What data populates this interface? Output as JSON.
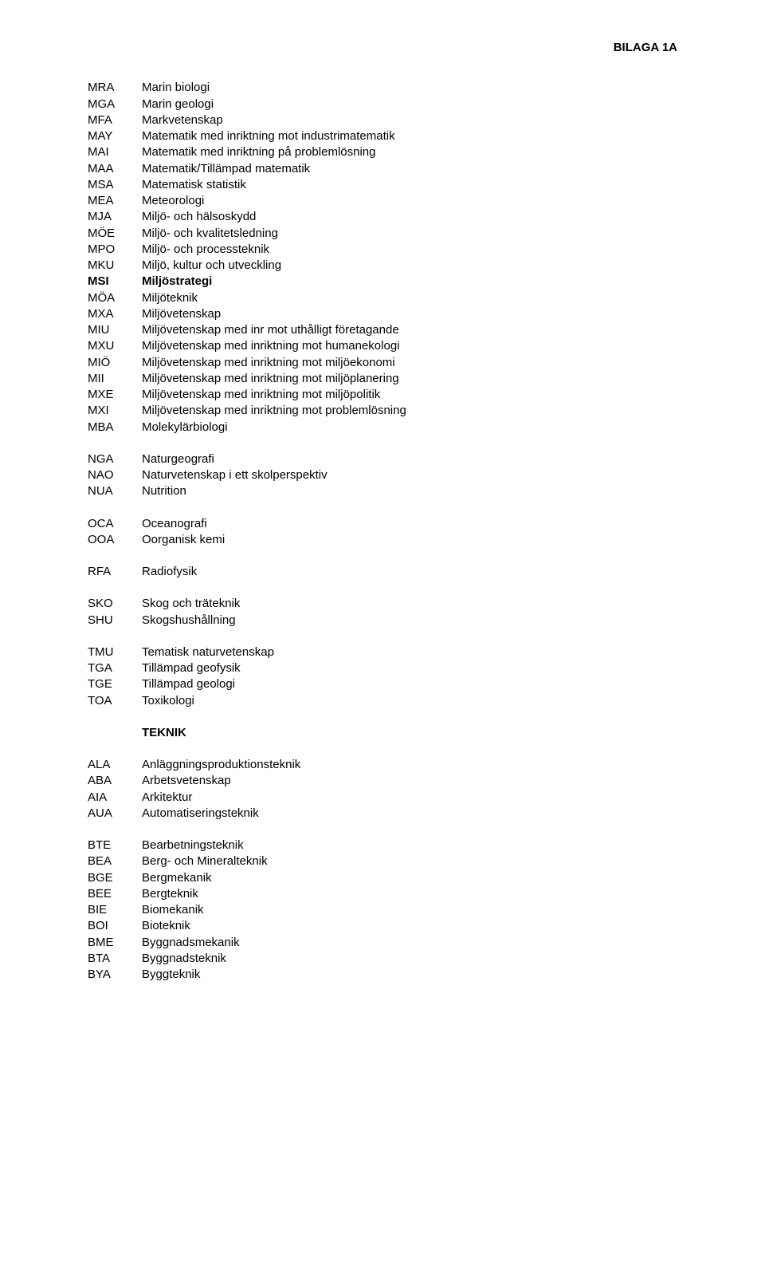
{
  "header": {
    "label": "BILAGA 1A"
  },
  "groups": [
    {
      "entries": [
        {
          "code": "MRA",
          "desc": "Marin biologi"
        },
        {
          "code": "MGA",
          "desc": "Marin geologi"
        },
        {
          "code": "MFA",
          "desc": "Markvetenskap"
        },
        {
          "code": "MAY",
          "desc": "Matematik med inriktning mot industrimatematik"
        },
        {
          "code": "MAI",
          "desc": "Matematik med inriktning på problemlösning"
        },
        {
          "code": "MAA",
          "desc": "Matematik/Tillämpad matematik"
        },
        {
          "code": "MSA",
          "desc": "Matematisk statistik"
        },
        {
          "code": "MEA",
          "desc": "Meteorologi"
        },
        {
          "code": "MJA",
          "desc": "Miljö- och hälsoskydd"
        },
        {
          "code": "MÖE",
          "desc": "Miljö- och kvalitetsledning"
        },
        {
          "code": "MPO",
          "desc": "Miljö- och processteknik"
        },
        {
          "code": "MKU",
          "desc": "Miljö, kultur och utveckling"
        },
        {
          "code": "MSI",
          "desc": "Miljöstrategi",
          "bold": true
        },
        {
          "code": "MÖA",
          "desc": "Miljöteknik"
        },
        {
          "code": "MXA",
          "desc": "Miljövetenskap"
        },
        {
          "code": "MIU",
          "desc": "Miljövetenskap med inr mot uthålligt företagande"
        },
        {
          "code": "MXU",
          "desc": "Miljövetenskap med inriktning mot humanekologi"
        },
        {
          "code": "MIÖ",
          "desc": "Miljövetenskap med inriktning mot miljöekonomi"
        },
        {
          "code": "MII",
          "desc": "Miljövetenskap med inriktning mot miljöplanering"
        },
        {
          "code": "MXE",
          "desc": "Miljövetenskap med inriktning mot miljöpolitik"
        },
        {
          "code": "MXI",
          "desc": "Miljövetenskap med inriktning mot problemlösning"
        },
        {
          "code": "MBA",
          "desc": "Molekylärbiologi"
        }
      ]
    },
    {
      "entries": [
        {
          "code": "NGA",
          "desc": "Naturgeografi"
        },
        {
          "code": "NAO",
          "desc": "Naturvetenskap i ett skolperspektiv"
        },
        {
          "code": "NUA",
          "desc": "Nutrition"
        }
      ]
    },
    {
      "entries": [
        {
          "code": "OCA",
          "desc": "Oceanografi"
        },
        {
          "code": "OOA",
          "desc": "Oorganisk kemi"
        }
      ]
    },
    {
      "entries": [
        {
          "code": "RFA",
          "desc": "Radiofysik"
        }
      ]
    },
    {
      "entries": [
        {
          "code": "SKO",
          "desc": "Skog och träteknik"
        },
        {
          "code": "SHU",
          "desc": "Skogshushållning"
        }
      ]
    },
    {
      "entries": [
        {
          "code": "TMU",
          "desc": "Tematisk naturvetenskap"
        },
        {
          "code": "TGA",
          "desc": "Tillämpad geofysik"
        },
        {
          "code": "TGE",
          "desc": "Tillämpad geologi"
        },
        {
          "code": "TOA",
          "desc": "Toxikologi"
        }
      ]
    },
    {
      "heading": "TEKNIK",
      "entries": []
    },
    {
      "entries": [
        {
          "code": "ALA",
          "desc": "Anläggningsproduktionsteknik"
        },
        {
          "code": "ABA",
          "desc": "Arbetsvetenskap"
        },
        {
          "code": "AIA",
          "desc": "Arkitektur"
        },
        {
          "code": "AUA",
          "desc": "Automatiseringsteknik"
        }
      ]
    },
    {
      "entries": [
        {
          "code": "BTE",
          "desc": "Bearbetningsteknik"
        },
        {
          "code": "BEA",
          "desc": "Berg- och Mineralteknik"
        },
        {
          "code": "BGE",
          "desc": "Bergmekanik"
        },
        {
          "code": "BEE",
          "desc": "Bergteknik"
        },
        {
          "code": "BIE",
          "desc": "Biomekanik"
        },
        {
          "code": "BOI",
          "desc": "Bioteknik"
        },
        {
          "code": "BME",
          "desc": "Byggnadsmekanik"
        },
        {
          "code": "BTA",
          "desc": "Byggnadsteknik"
        },
        {
          "code": "BYA",
          "desc": "Byggteknik"
        }
      ]
    }
  ]
}
